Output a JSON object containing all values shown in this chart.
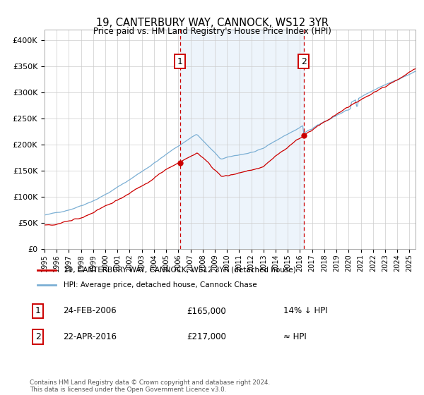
{
  "title": "19, CANTERBURY WAY, CANNOCK, WS12 3YR",
  "subtitle": "Price paid vs. HM Land Registry's House Price Index (HPI)",
  "legend_line1": "19, CANTERBURY WAY, CANNOCK, WS12 3YR (detached house)",
  "legend_line2": "HPI: Average price, detached house, Cannock Chase",
  "annotation1_date": "24-FEB-2006",
  "annotation1_price": "£165,000",
  "annotation1_hpi": "14% ↓ HPI",
  "annotation2_date": "22-APR-2016",
  "annotation2_price": "£217,000",
  "annotation2_hpi": "≈ HPI",
  "footer": "Contains HM Land Registry data © Crown copyright and database right 2024.\nThis data is licensed under the Open Government Licence v3.0.",
  "hpi_color": "#7bafd4",
  "property_color": "#cc0000",
  "bg_shade_color": "#cce0f5",
  "vline_color": "#cc0000",
  "point1_x_year": 2006.14,
  "point1_y": 165000,
  "point2_x_year": 2016.31,
  "point2_y": 217000,
  "ylim": [
    0,
    420000
  ],
  "xlim_start": 1995.0,
  "xlim_end": 2025.5,
  "yticks": [
    0,
    50000,
    100000,
    150000,
    200000,
    250000,
    300000,
    350000,
    400000
  ],
  "ytick_labels": [
    "£0",
    "£50K",
    "£100K",
    "£150K",
    "£200K",
    "£250K",
    "£300K",
    "£350K",
    "£400K"
  ],
  "xtick_years": [
    1995,
    1996,
    1997,
    1998,
    1999,
    2000,
    2001,
    2002,
    2003,
    2004,
    2005,
    2006,
    2007,
    2008,
    2009,
    2010,
    2011,
    2012,
    2013,
    2014,
    2015,
    2016,
    2017,
    2018,
    2019,
    2020,
    2021,
    2022,
    2023,
    2024,
    2025
  ]
}
